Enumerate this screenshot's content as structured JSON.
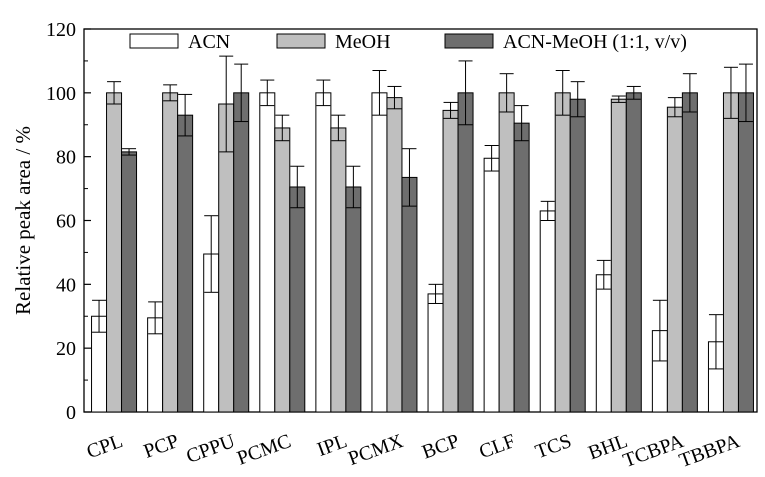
{
  "chart_data": {
    "type": "bar",
    "title": "",
    "xlabel": "",
    "ylabel": "Relative peak area / %",
    "ylim": [
      0,
      120
    ],
    "yticks": [
      0,
      20,
      40,
      60,
      80,
      100,
      120
    ],
    "legend_position": "top",
    "categories": [
      "CPL",
      "PCP",
      "CPPU",
      "PCMC",
      "IPL",
      "PCMX",
      "BCP",
      "CLF",
      "TCS",
      "BHL",
      "TCBPA",
      "TBBPA"
    ],
    "series": [
      {
        "name": "ACN",
        "color": "#ffffff",
        "values": [
          30,
          29.5,
          49.5,
          100,
          100,
          100,
          37,
          79.5,
          63,
          43,
          25.5,
          22
        ],
        "errors": [
          5,
          5,
          12,
          4,
          4,
          7,
          3,
          4,
          3,
          4.5,
          9.5,
          8.5
        ]
      },
      {
        "name": "MeOH",
        "color": "#bfbfbf",
        "values": [
          100,
          100,
          96.5,
          89,
          89,
          98.5,
          94.5,
          100,
          100,
          98,
          95.5,
          100
        ],
        "errors": [
          3.5,
          2.5,
          15,
          4,
          4,
          3.5,
          2.5,
          6,
          7,
          1,
          3,
          8
        ]
      },
      {
        "name": "ACN-MeOH (1:1, v/v)",
        "color": "#6e6e6e",
        "values": [
          81.5,
          93,
          100,
          70.5,
          70.5,
          73.5,
          100,
          90.5,
          98,
          100,
          100,
          100
        ],
        "errors": [
          1,
          6.5,
          9,
          6.5,
          6.5,
          9,
          10,
          5.5,
          5.5,
          2,
          6,
          9
        ]
      }
    ]
  }
}
